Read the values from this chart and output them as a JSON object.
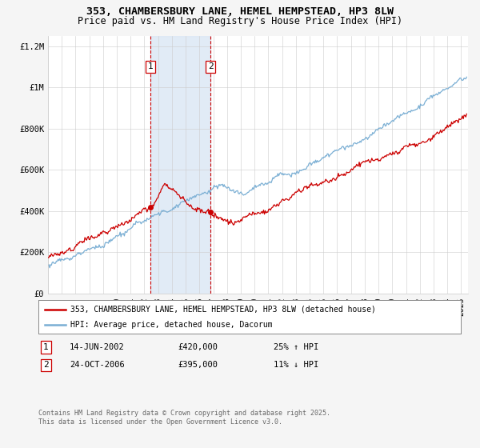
{
  "title": "353, CHAMBERSBURY LANE, HEMEL HEMPSTEAD, HP3 8LW",
  "subtitle": "Price paid vs. HM Land Registry's House Price Index (HPI)",
  "ylim": [
    0,
    1250000
  ],
  "yticks": [
    0,
    200000,
    400000,
    600000,
    800000,
    1000000,
    1200000
  ],
  "ytick_labels": [
    "£0",
    "£200K",
    "£400K",
    "£600K",
    "£800K",
    "£1M",
    "£1.2M"
  ],
  "background_color": "#f5f5f5",
  "plot_bg_color": "#ffffff",
  "grid_color": "#cccccc",
  "hpi_color": "#7bafd4",
  "price_color": "#cc0000",
  "shade_color": "#dce8f5",
  "dashed_line_color": "#cc0000",
  "transaction1_date": 2002.45,
  "transaction1_price": 420000,
  "transaction2_date": 2006.81,
  "transaction2_price": 395000,
  "legend_label1": "353, CHAMBERSBURY LANE, HEMEL HEMPSTEAD, HP3 8LW (detached house)",
  "legend_label2": "HPI: Average price, detached house, Dacorum",
  "annotation1_date": "14-JUN-2002",
  "annotation1_price": "£420,000",
  "annotation1_hpi": "25% ↑ HPI",
  "annotation2_date": "24-OCT-2006",
  "annotation2_price": "£395,000",
  "annotation2_hpi": "11% ↓ HPI",
  "footer": "Contains HM Land Registry data © Crown copyright and database right 2025.\nThis data is licensed under the Open Government Licence v3.0.",
  "xmin": 1995,
  "xmax": 2025.5
}
